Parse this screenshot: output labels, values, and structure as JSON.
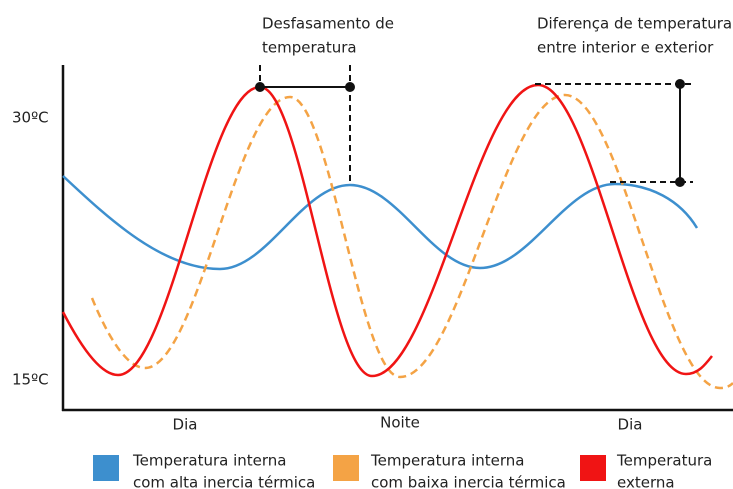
{
  "axis": {
    "y_labels": [
      "30ºC",
      "15ºC"
    ],
    "x_labels": [
      "Dia",
      "Noite",
      "Dia"
    ]
  },
  "annotations": [
    {
      "lines": [
        "Desfasamento de",
        "temperatura"
      ]
    },
    {
      "lines": [
        "Diferença de temperatura",
        "entre interior e exterior"
      ]
    }
  ],
  "legend": [
    {
      "lines": [
        "Temperatura interna",
        "com alta inercia térmica"
      ],
      "color": "#3d8fce"
    },
    {
      "lines": [
        "Temperatura interna",
        "com baixa inercia térmica"
      ],
      "color": "#f4a345"
    },
    {
      "lines": [
        "Temperatura",
        "externa"
      ],
      "color": "#f01414"
    }
  ]
}
